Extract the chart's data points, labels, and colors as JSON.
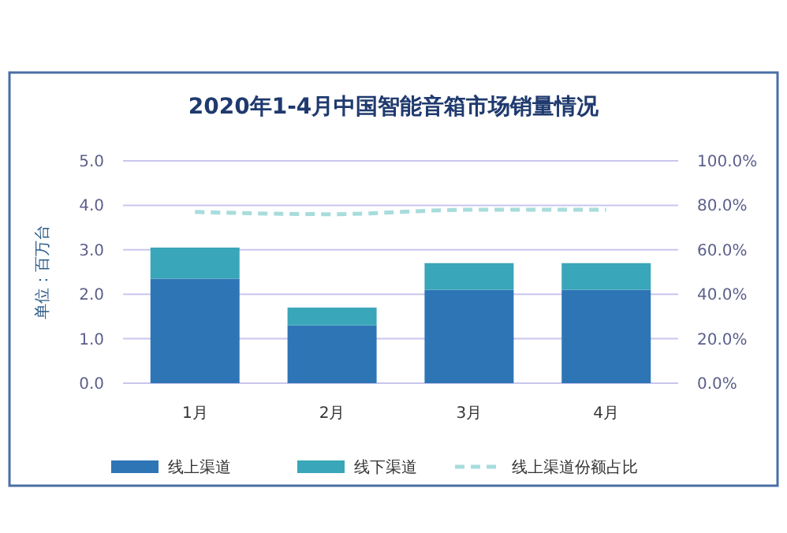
{
  "chart_data": {
    "type": "bar",
    "title": "2020年1-4月中国智能音箱市场销量情况",
    "ylabel": "单位：百万台",
    "categories": [
      "1月",
      "2月",
      "3月",
      "4月"
    ],
    "stacked": true,
    "series": [
      {
        "name": "线上渠道",
        "color": "#2e75b6",
        "values": [
          2.35,
          1.3,
          2.1,
          2.1
        ]
      },
      {
        "name": "线下渠道",
        "color": "#3aa6b9",
        "values": [
          0.7,
          0.4,
          0.6,
          0.6
        ]
      },
      {
        "name": "线上渠道份额占比",
        "type": "line",
        "axis": "y2",
        "color": "#a8dcdc",
        "line_style": "dashed",
        "marker": "none",
        "values": [
          77,
          76,
          78,
          78
        ]
      }
    ],
    "ylim": [
      0,
      5
    ],
    "yticks": [
      {
        "value": 0,
        "label": "0.0"
      },
      {
        "value": 1,
        "label": "1.0"
      },
      {
        "value": 2,
        "label": "2.0"
      },
      {
        "value": 3,
        "label": "3.0"
      },
      {
        "value": 4,
        "label": "4.0"
      },
      {
        "value": 5,
        "label": "5.0"
      }
    ],
    "y2lim": [
      0,
      100
    ],
    "y2ticks": [
      {
        "value": 0,
        "label": "0.0%"
      },
      {
        "value": 20,
        "label": "20.0%"
      },
      {
        "value": 40,
        "label": "40.0%"
      },
      {
        "value": 60,
        "label": "60.0%"
      },
      {
        "value": 80,
        "label": "80.0%"
      },
      {
        "value": 100,
        "label": "100.0%"
      }
    ],
    "grid": "y",
    "legend": "bottom"
  }
}
